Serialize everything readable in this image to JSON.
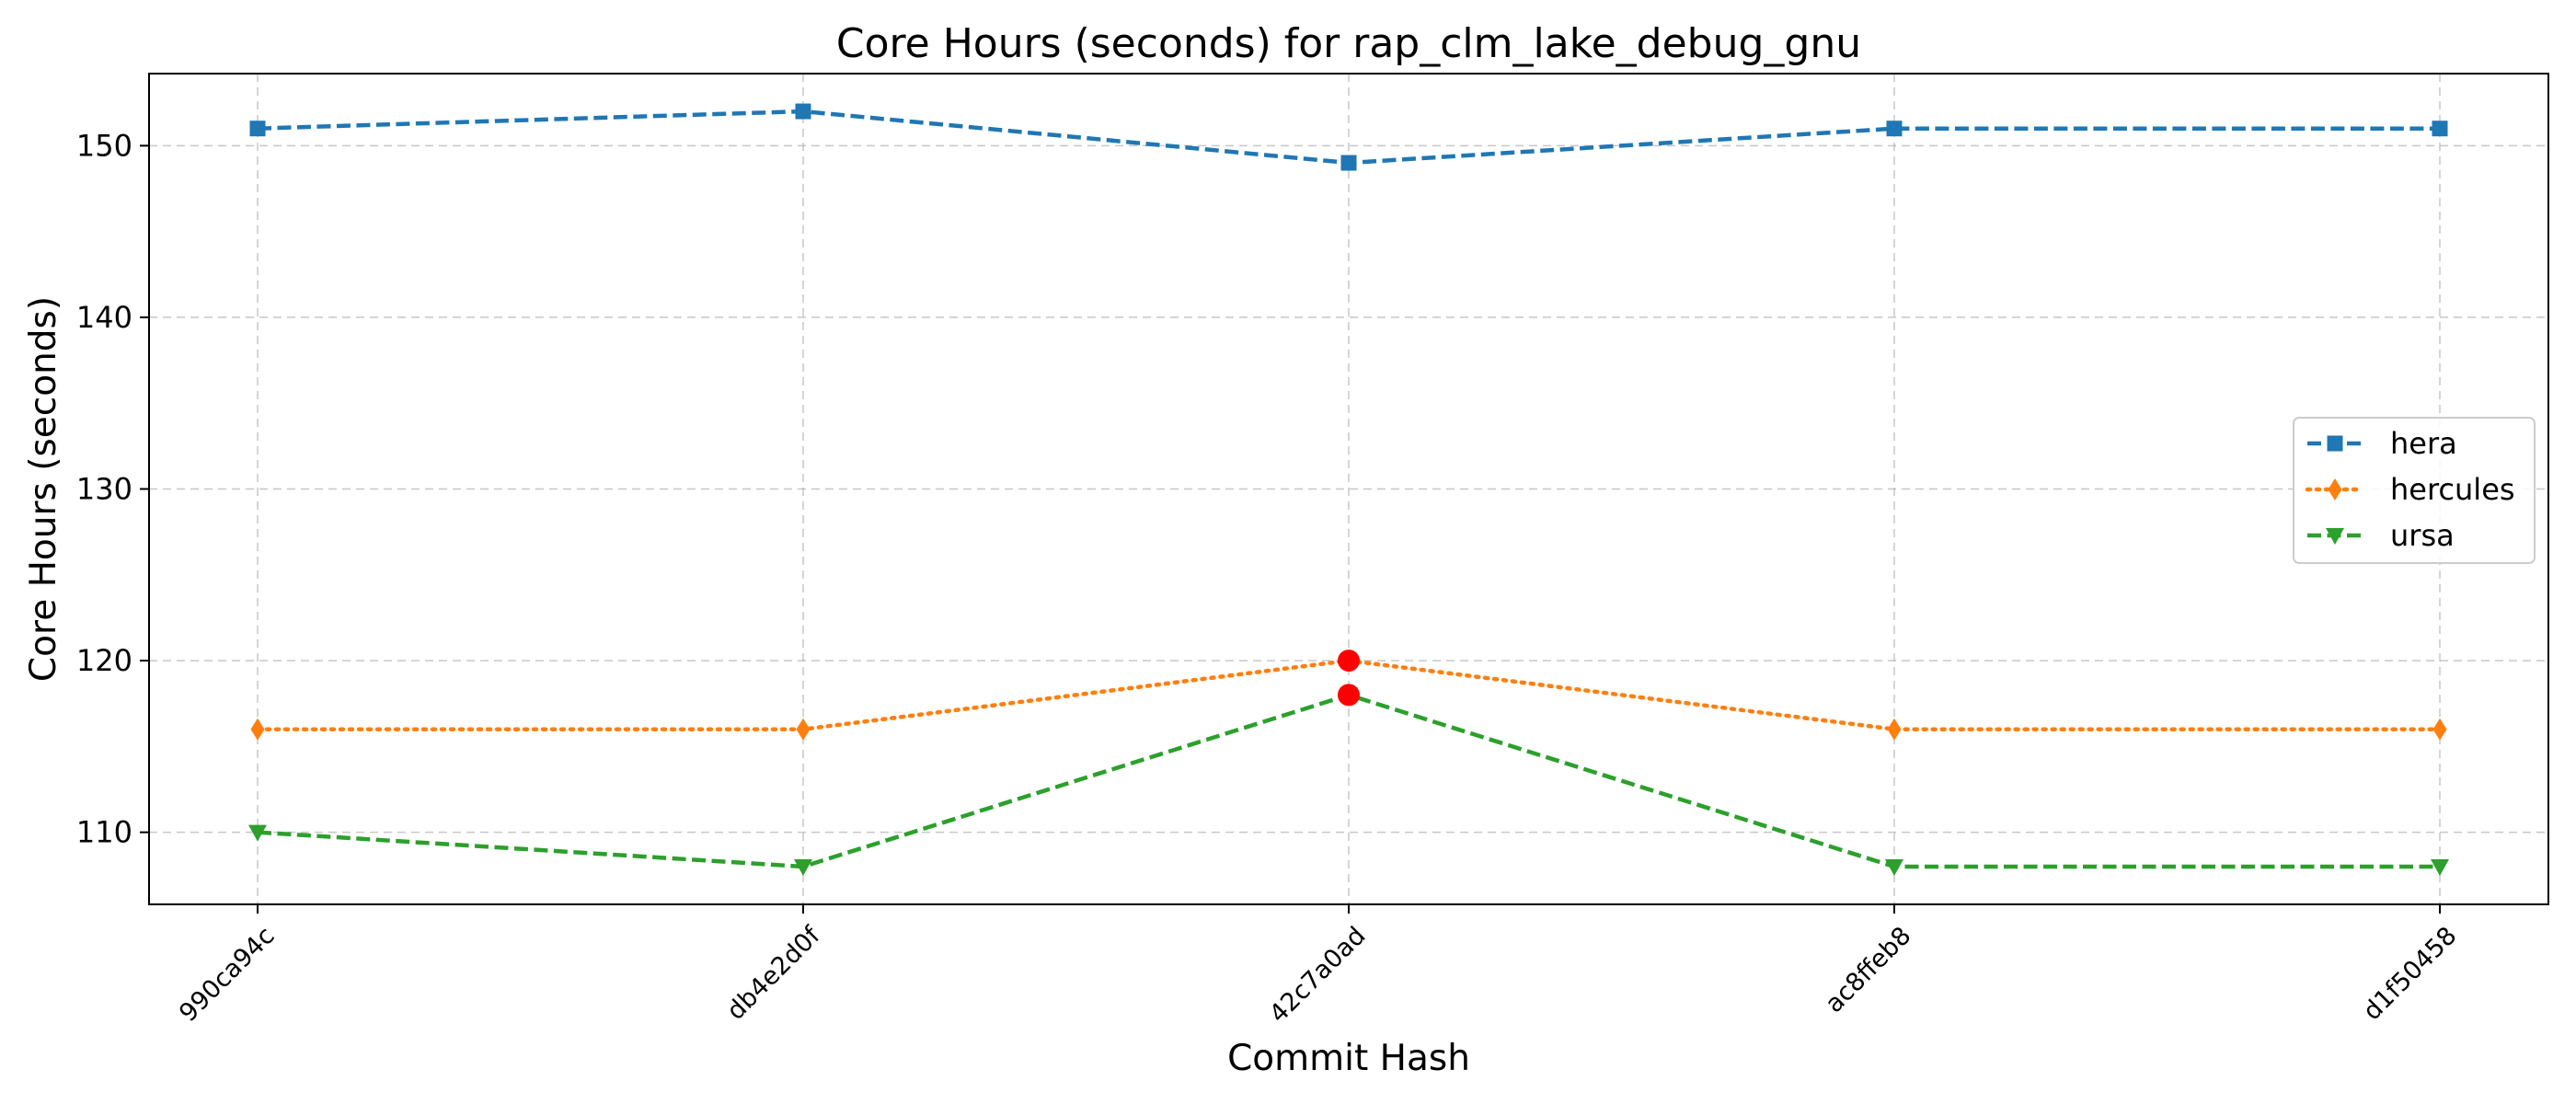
{
  "chart_data": {
    "type": "line",
    "title": "Core Hours (seconds) for rap_clm_lake_debug_gnu",
    "xlabel": "Commit Hash",
    "ylabel": "Core Hours (seconds)",
    "categories": [
      "990ca94c",
      "db4e2d0f",
      "42c7a0ad",
      "ac8ffeb8",
      "d1f50458"
    ],
    "ylim": [
      105.8,
      154.2
    ],
    "yticks": [
      110,
      120,
      130,
      140,
      150
    ],
    "grid": true,
    "legend_position": "center-right",
    "series": [
      {
        "name": "hera",
        "values": [
          151,
          152,
          149,
          151,
          151
        ],
        "color": "#1f77b4",
        "marker": "square",
        "line_style": "dashed"
      },
      {
        "name": "hercules",
        "values": [
          116,
          116,
          120,
          116,
          116
        ],
        "color": "#ff7f0e",
        "marker": "thin-diamond",
        "line_style": "dotted"
      },
      {
        "name": "ursa",
        "values": [
          110,
          108,
          118,
          108,
          108
        ],
        "color": "#2ca02c",
        "marker": "triangle-down",
        "line_style": "dashed"
      }
    ],
    "highlighted_points": [
      {
        "series": "hercules",
        "category": "42c7a0ad",
        "value": 120,
        "color": "#ff0000"
      },
      {
        "series": "ursa",
        "category": "42c7a0ad",
        "value": 118,
        "color": "#ff0000"
      }
    ]
  }
}
